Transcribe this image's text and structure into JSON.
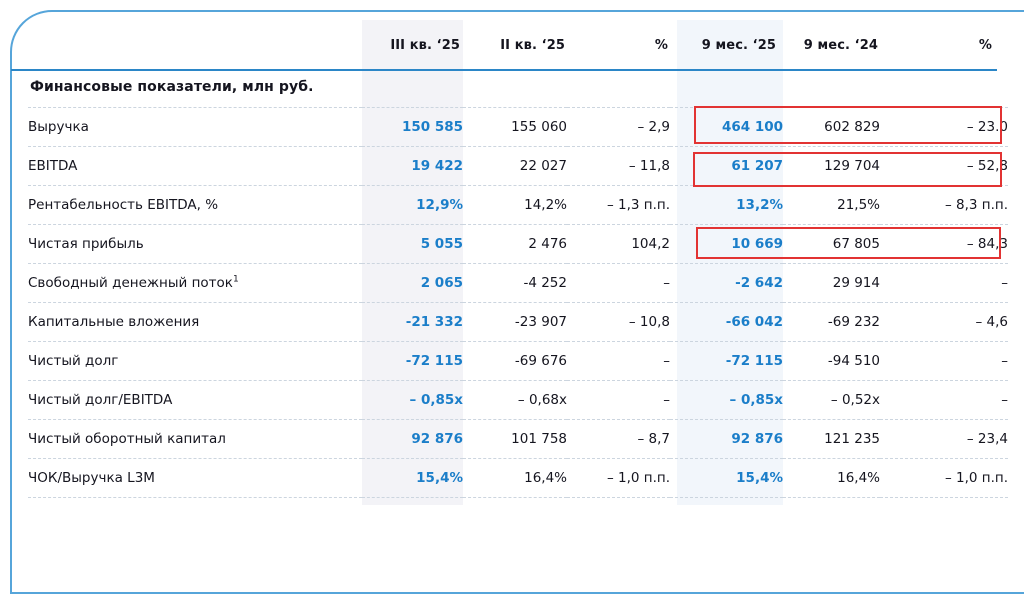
{
  "card": {
    "section_title": "Финансовые показатели, млн руб.",
    "columns": [
      {
        "label": "III кв. ‘25",
        "highlight": true
      },
      {
        "label": "II кв. ‘25",
        "highlight": false
      },
      {
        "label": "%",
        "highlight": false
      },
      {
        "label": "9 мес. ‘25",
        "highlight": true
      },
      {
        "label": "9 мес. ‘24",
        "highlight": false
      },
      {
        "label": "%",
        "highlight": false
      }
    ],
    "rows": [
      {
        "label": "Выручка",
        "values": [
          "150 585",
          "155 060",
          "– 2,9",
          "464 100",
          "602 829",
          "– 23.0"
        ],
        "red_box": true
      },
      {
        "label": "EBITDA",
        "values": [
          "19 422",
          "22 027",
          "– 11,8",
          "61 207",
          "129 704",
          "– 52,8"
        ],
        "red_box": true
      },
      {
        "label": "Рентабельность EBITDA, %",
        "values": [
          "12,9%",
          "14,2%",
          "– 1,3 п.п.",
          "13,2%",
          "21,5%",
          "– 8,3 п.п."
        ],
        "red_box": false
      },
      {
        "label": "Чистая прибыль",
        "values": [
          "5 055",
          "2 476",
          "104,2",
          "10 669",
          "67 805",
          "– 84,3"
        ],
        "red_box": true
      },
      {
        "label": "Свободный денежный поток",
        "label_superscript": "1",
        "values": [
          "2 065",
          "-4 252",
          "–",
          "-2 642",
          "29 914",
          "–"
        ],
        "red_box": false
      },
      {
        "label": "Капитальные вложения",
        "values": [
          "-21 332",
          "-23 907",
          "– 10,8",
          "-66 042",
          "-69 232",
          "– 4,6"
        ],
        "red_box": false
      },
      {
        "label": "Чистый долг",
        "values": [
          "-72 115",
          "-69 676",
          "–",
          "-72 115",
          "-94 510",
          "–"
        ],
        "red_box": false
      },
      {
        "label": "Чистый долг/EBITDA",
        "values": [
          "– 0,85x",
          "– 0,68x",
          "–",
          "– 0,85x",
          "– 0,52x",
          "–"
        ],
        "red_box": false
      },
      {
        "label": "Чистый оборотный капитал",
        "values": [
          "92 876",
          "101 758",
          "– 8,7",
          "92 876",
          "121 235",
          "– 23,4"
        ],
        "red_box": false
      },
      {
        "label": "ЧОК/Выручка L3M",
        "values": [
          "15,4%",
          "16,4%",
          "– 1,0 п.п.",
          "15,4%",
          "16,4%",
          "– 1,0 п.п."
        ],
        "red_box": false
      }
    ]
  },
  "colors": {
    "accent_blue_text": "#1b7ec9",
    "header_underline_blue": "#2b86c7",
    "card_border_blue": "#56a5da",
    "red_box_border": "#e23333",
    "column_highlight_gray": "#f3f3f7",
    "column_highlight_blue": "#f2f6fb",
    "dashed_divider": "#ccd5df",
    "text_black": "#15151f"
  }
}
